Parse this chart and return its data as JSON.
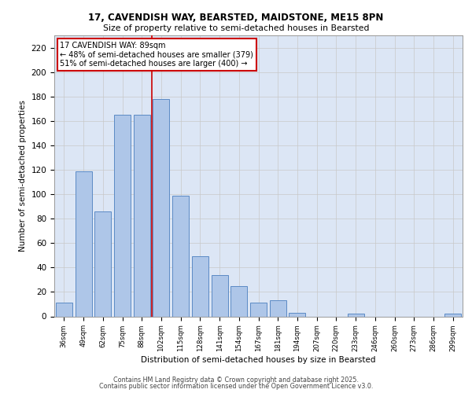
{
  "title1": "17, CAVENDISH WAY, BEARSTED, MAIDSTONE, ME15 8PN",
  "title2": "Size of property relative to semi-detached houses in Bearsted",
  "xlabel": "Distribution of semi-detached houses by size in Bearsted",
  "ylabel": "Number of semi-detached properties",
  "categories": [
    "36sqm",
    "49sqm",
    "62sqm",
    "75sqm",
    "88sqm",
    "102sqm",
    "115sqm",
    "128sqm",
    "141sqm",
    "154sqm",
    "167sqm",
    "181sqm",
    "194sqm",
    "207sqm",
    "220sqm",
    "233sqm",
    "246sqm",
    "260sqm",
    "273sqm",
    "286sqm",
    "299sqm"
  ],
  "values": [
    11,
    119,
    86,
    165,
    165,
    178,
    99,
    49,
    34,
    25,
    11,
    13,
    3,
    0,
    0,
    2,
    0,
    0,
    0,
    0,
    2
  ],
  "bar_color": "#aec6e8",
  "bar_edge_color": "#5b8ac5",
  "highlight_bar_index": 4,
  "highlight_line_color": "#cc0000",
  "annotation_text": "17 CAVENDISH WAY: 89sqm\n← 48% of semi-detached houses are smaller (379)\n51% of semi-detached houses are larger (400) →",
  "annotation_box_color": "#ffffff",
  "annotation_box_edge_color": "#cc0000",
  "ylim": [
    0,
    230
  ],
  "yticks": [
    0,
    20,
    40,
    60,
    80,
    100,
    120,
    140,
    160,
    180,
    200,
    220
  ],
  "bg_color": "#dce6f5",
  "footer1": "Contains HM Land Registry data © Crown copyright and database right 2025.",
  "footer2": "Contains public sector information licensed under the Open Government Licence v3.0."
}
